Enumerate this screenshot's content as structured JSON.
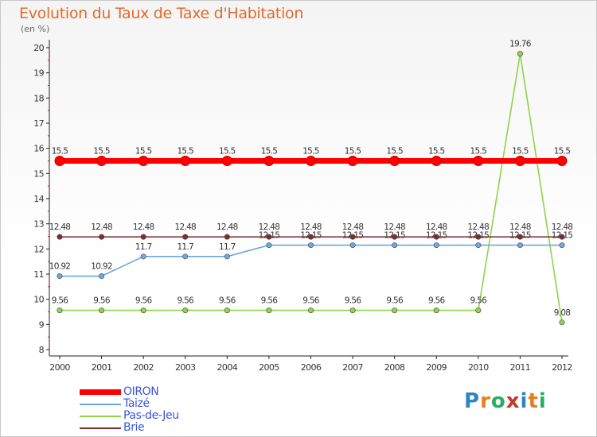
{
  "chart_data": {
    "type": "line",
    "title": "Evolution du Taux de Taxe d'Habitation",
    "subtitle": "(en %)",
    "x": [
      "2000",
      "2001",
      "2002",
      "2003",
      "2004",
      "2005",
      "2006",
      "2007",
      "2008",
      "2009",
      "2010",
      "2011",
      "2012"
    ],
    "ylim": [
      8,
      20
    ],
    "yticks": [
      8,
      9,
      10,
      11,
      12,
      13,
      14,
      15,
      16,
      17,
      18,
      19,
      20
    ],
    "grid": false,
    "legend_position": "bottom-left",
    "series": [
      {
        "name": "OIRON",
        "color": "#ff0000",
        "values": [
          15.5,
          15.5,
          15.5,
          15.5,
          15.5,
          15.5,
          15.5,
          15.5,
          15.5,
          15.5,
          15.5,
          15.5,
          15.5
        ]
      },
      {
        "name": "Taizé",
        "color": "#6fa8dc",
        "values": [
          10.92,
          10.92,
          11.7,
          11.7,
          11.7,
          12.15,
          12.15,
          12.15,
          12.15,
          12.15,
          12.15,
          12.15,
          12.15
        ]
      },
      {
        "name": "Pas-de-Jeu",
        "color": "#8fd44a",
        "values": [
          9.56,
          9.56,
          9.56,
          9.56,
          9.56,
          9.56,
          9.56,
          9.56,
          9.56,
          9.56,
          9.56,
          19.76,
          9.08
        ]
      },
      {
        "name": "Brie",
        "color": "#7a3030",
        "values": [
          12.48,
          12.48,
          12.48,
          12.48,
          12.48,
          12.48,
          12.48,
          12.48,
          12.48,
          12.48,
          12.48,
          12.48,
          12.48
        ]
      }
    ]
  },
  "logo": {
    "text": "Proxiti"
  }
}
